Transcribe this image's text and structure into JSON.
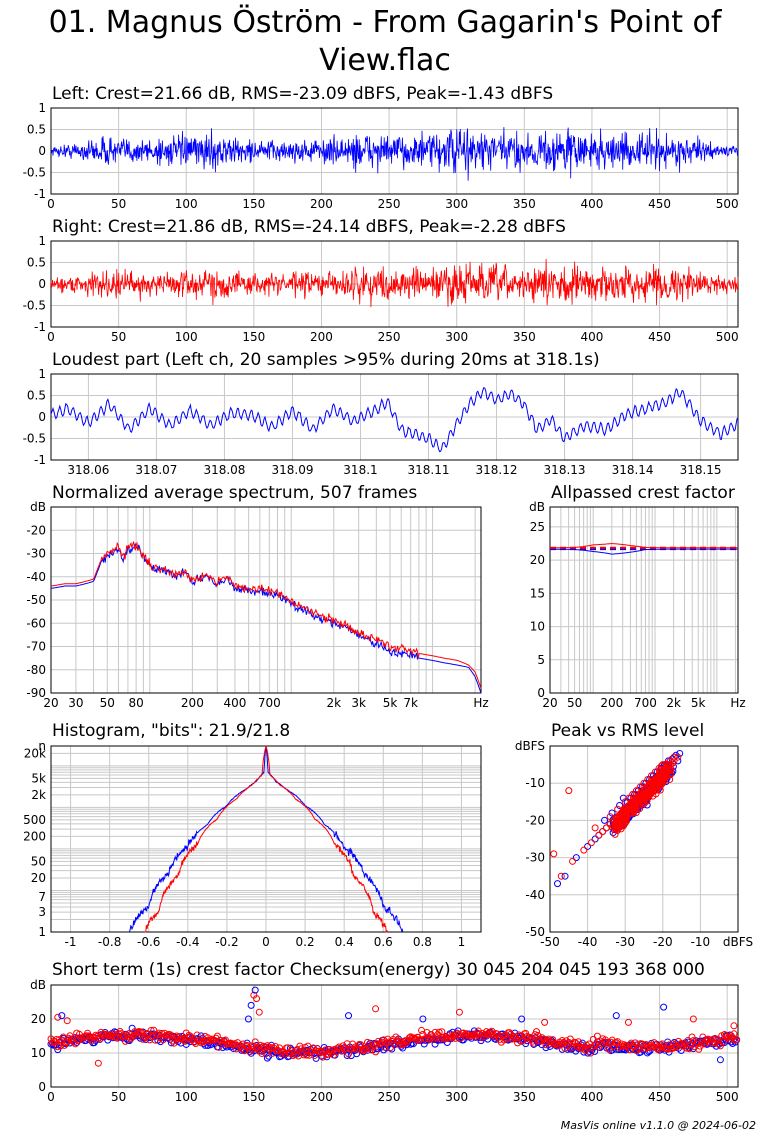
{
  "title": "01. Magnus Öström - From Gagarin's Point of\nView.flac",
  "credit": "MasVis online v1.1.0 @ 2024-06-02",
  "colors": {
    "left": "#0000ff",
    "right": "#ff0000",
    "avg": "#cc0033",
    "grid": "#c8c8c8"
  },
  "chart_data": [
    {
      "id": "left",
      "type": "line",
      "title": "Left: Crest=21.66 dB, RMS=-23.09 dBFS, Peak=-1.43 dBFS",
      "xlim": [
        0,
        508
      ],
      "ylim": [
        -1,
        1
      ],
      "xticks": [
        0,
        50,
        100,
        150,
        200,
        250,
        300,
        350,
        400,
        450,
        500
      ],
      "yticks": [
        1,
        0.5,
        0,
        -0.5,
        -1
      ],
      "envelope": {
        "x": [
          0,
          20,
          40,
          60,
          80,
          100,
          115,
          125,
          135,
          150,
          180,
          200,
          220,
          225,
          230,
          240,
          260,
          280,
          300,
          310,
          320,
          340,
          360,
          380,
          390,
          400,
          420,
          440,
          450,
          460,
          480,
          490,
          500,
          508
        ],
        "y": [
          0.12,
          0.25,
          0.4,
          0.35,
          0.42,
          0.4,
          0.45,
          0.55,
          0.35,
          0.3,
          0.3,
          0.35,
          0.4,
          0.55,
          0.55,
          0.45,
          0.42,
          0.5,
          0.65,
          0.75,
          0.6,
          0.5,
          0.55,
          0.6,
          0.65,
          0.55,
          0.45,
          0.5,
          0.6,
          0.45,
          0.3,
          0.2,
          0.15,
          0.1
        ]
      }
    },
    {
      "id": "right",
      "type": "line",
      "title": "Right: Crest=21.86 dB, RMS=-24.14 dBFS, Peak=-2.28 dBFS",
      "xlim": [
        0,
        508
      ],
      "ylim": [
        -1,
        1
      ],
      "xticks": [
        0,
        50,
        100,
        150,
        200,
        250,
        300,
        350,
        400,
        450,
        500
      ],
      "yticks": [
        1,
        0.5,
        0,
        -0.5,
        -1
      ],
      "envelope": {
        "x": [
          0,
          20,
          40,
          60,
          80,
          100,
          115,
          125,
          135,
          150,
          180,
          200,
          220,
          225,
          230,
          240,
          260,
          280,
          300,
          310,
          320,
          340,
          360,
          380,
          390,
          400,
          420,
          440,
          450,
          460,
          480,
          490,
          500,
          508
        ],
        "y": [
          0.15,
          0.3,
          0.35,
          0.38,
          0.35,
          0.38,
          0.4,
          0.45,
          0.35,
          0.3,
          0.32,
          0.35,
          0.38,
          0.5,
          0.5,
          0.42,
          0.4,
          0.45,
          0.6,
          0.7,
          0.55,
          0.45,
          0.5,
          0.55,
          0.55,
          0.5,
          0.4,
          0.45,
          0.55,
          0.42,
          0.35,
          0.28,
          0.25,
          0.22
        ]
      }
    },
    {
      "id": "loudest",
      "type": "line",
      "title": "Loudest part (Left ch, 20 samples >95% during 20ms at 318.1s)",
      "xlim": [
        318.0545,
        318.1555
      ],
      "ylim": [
        -1,
        1
      ],
      "xticks": [
        318.06,
        318.07,
        318.08,
        318.09,
        318.1,
        318.11,
        318.12,
        318.13,
        318.14,
        318.15
      ],
      "xticklabels": [
        "318.06",
        "318.07",
        "318.08",
        "318.09",
        "318.1",
        "318.11",
        "318.12",
        "318.13",
        "318.14",
        "318.15"
      ],
      "yticks": [
        1,
        0.5,
        0,
        -0.5,
        -1
      ],
      "series": [
        {
          "name": "Left",
          "x": [
            318.0545,
            318.057,
            318.06,
            318.063,
            318.066,
            318.069,
            318.072,
            318.075,
            318.078,
            318.081,
            318.084,
            318.087,
            318.09,
            318.093,
            318.096,
            318.099,
            318.102,
            318.104,
            318.106,
            318.108,
            318.11,
            318.112,
            318.114,
            318.116,
            318.118,
            318.12,
            318.122,
            318.124,
            318.126,
            318.128,
            318.13,
            318.133,
            318.136,
            318.139,
            318.142,
            318.145,
            318.147,
            318.15,
            318.153,
            318.1555
          ],
          "y": [
            0.05,
            0.2,
            -0.15,
            0.3,
            -0.3,
            0.2,
            -0.2,
            0.15,
            -0.2,
            0.1,
            0.05,
            -0.25,
            0.15,
            -0.3,
            0.2,
            -0.1,
            0.15,
            0.35,
            -0.3,
            -0.4,
            -0.5,
            -0.75,
            -0.2,
            0.3,
            0.6,
            0.4,
            0.55,
            0.3,
            -0.3,
            -0.05,
            -0.5,
            -0.2,
            -0.3,
            0.05,
            0.2,
            0.35,
            0.6,
            -0.1,
            -0.4,
            -0.15
          ]
        }
      ]
    },
    {
      "id": "spectrum",
      "type": "line",
      "title": "Normalized average spectrum, 507 frames",
      "ylabel": "dB",
      "xlabel": "Hz",
      "xscale": "log",
      "xlim": [
        20,
        22000
      ],
      "ylim": [
        -90,
        -10
      ],
      "yticks": [
        -20,
        -30,
        -40,
        -50,
        -60,
        -70,
        -80,
        -90
      ],
      "xticks": [
        20,
        30,
        50,
        80,
        200,
        400,
        700,
        2000,
        3000,
        5000,
        7000
      ],
      "xticklabels": [
        "20",
        "30",
        "50",
        "80",
        "200",
        "400",
        "700",
        "2k",
        "3k",
        "5k",
        "7k"
      ],
      "series": [
        {
          "name": "Left",
          "x": [
            20,
            25,
            30,
            35,
            40,
            45,
            50,
            55,
            60,
            65,
            70,
            80,
            90,
            100,
            120,
            150,
            180,
            200,
            250,
            300,
            350,
            400,
            500,
            600,
            700,
            800,
            1000,
            1200,
            1500,
            2000,
            2500,
            3000,
            4000,
            5000,
            6000,
            7000,
            8000,
            10000,
            12000,
            15000,
            18000,
            20000,
            22000
          ],
          "y": [
            -45,
            -44,
            -44,
            -43,
            -42,
            -34,
            -31,
            -30,
            -28,
            -33,
            -28,
            -27,
            -32,
            -35,
            -37,
            -40,
            -38,
            -42,
            -40,
            -43,
            -41,
            -45,
            -46,
            -46,
            -47,
            -48,
            -52,
            -54,
            -57,
            -60,
            -62,
            -65,
            -69,
            -72,
            -73,
            -74,
            -75,
            -76,
            -77,
            -78,
            -79,
            -83,
            -90
          ]
        },
        {
          "name": "Right",
          "x": [
            20,
            25,
            30,
            35,
            40,
            45,
            50,
            55,
            60,
            65,
            70,
            80,
            90,
            100,
            120,
            150,
            180,
            200,
            250,
            300,
            350,
            400,
            500,
            600,
            700,
            800,
            1000,
            1200,
            1500,
            2000,
            2500,
            3000,
            4000,
            5000,
            6000,
            7000,
            8000,
            10000,
            12000,
            15000,
            18000,
            20000,
            22000
          ],
          "y": [
            -44,
            -43,
            -43,
            -42,
            -41,
            -33,
            -30,
            -29,
            -27,
            -32,
            -27,
            -26,
            -31,
            -35,
            -37,
            -39,
            -38,
            -41,
            -39,
            -42,
            -40,
            -44,
            -45,
            -45,
            -46,
            -47,
            -51,
            -53,
            -56,
            -59,
            -61,
            -64,
            -67,
            -70,
            -71,
            -72,
            -73,
            -74,
            -75,
            -76,
            -78,
            -81,
            -88
          ]
        }
      ]
    },
    {
      "id": "allpass",
      "type": "line",
      "title": "Allpassed crest factor",
      "ylabel": "dB",
      "xlabel": "Hz",
      "xscale": "log",
      "xlim": [
        20,
        22000
      ],
      "ylim": [
        0,
        28
      ],
      "yticks": [
        25,
        20,
        15,
        10,
        5,
        0
      ],
      "xticks": [
        20,
        50,
        200,
        700,
        2000,
        5000
      ],
      "xticklabels": [
        "20",
        "50",
        "200",
        "700",
        "2k",
        "5k"
      ],
      "series": [
        {
          "name": "Left",
          "x": [
            20,
            50,
            100,
            200,
            400,
            700,
            1500,
            5000,
            22000
          ],
          "y": [
            21.66,
            21.6,
            21.3,
            20.9,
            21.2,
            21.6,
            21.66,
            21.66,
            21.66
          ]
        },
        {
          "name": "Right",
          "x": [
            20,
            50,
            100,
            200,
            400,
            700,
            1500,
            5000,
            22000
          ],
          "y": [
            21.86,
            21.9,
            22.3,
            22.5,
            22.2,
            21.9,
            21.86,
            21.86,
            21.86
          ]
        },
        {
          "name": "Left",
          "x": [
            20,
            22000
          ],
          "y": [
            21.66,
            21.66
          ],
          "dashed": true
        },
        {
          "name": "Right",
          "x": [
            20,
            22000
          ],
          "y": [
            21.86,
            21.86
          ],
          "dashed": true
        }
      ]
    },
    {
      "id": "histogram",
      "type": "line",
      "title": "Histogram, \"bits\": 21.9/21.8",
      "ylabel": "n",
      "yscale": "log",
      "xlim": [
        -1.1,
        1.1
      ],
      "ylim": [
        1,
        30000
      ],
      "xticks": [
        -1,
        -0.8,
        -0.6,
        -0.4,
        -0.2,
        0,
        0.2,
        0.4,
        0.6,
        0.8,
        1
      ],
      "yticks": [
        20000,
        5000,
        2000,
        500,
        200,
        50,
        20,
        7,
        3,
        1
      ],
      "yticklabels": [
        "20k",
        "5k",
        "2k",
        "500",
        "200",
        "50",
        "20",
        "7",
        "3",
        "1"
      ],
      "series": [
        {
          "name": "Left",
          "x": [
            -0.7,
            -0.6,
            -0.5,
            -0.4,
            -0.3,
            -0.2,
            -0.1,
            -0.05,
            -0.01,
            0,
            0.01,
            0.05,
            0.1,
            0.2,
            0.3,
            0.4,
            0.5,
            0.6,
            0.7
          ],
          "y": [
            1,
            4,
            25,
            110,
            380,
            1100,
            2800,
            4200,
            7000,
            30000,
            7000,
            4200,
            2800,
            1100,
            380,
            110,
            25,
            4,
            1
          ]
        },
        {
          "name": "Right",
          "x": [
            -0.62,
            -0.55,
            -0.45,
            -0.35,
            -0.25,
            -0.15,
            -0.07,
            -0.02,
            0,
            0.02,
            0.07,
            0.15,
            0.25,
            0.35,
            0.45,
            0.55,
            0.62
          ],
          "y": [
            1,
            3,
            22,
            130,
            520,
            1600,
            3500,
            6000,
            30000,
            6000,
            3500,
            1600,
            520,
            130,
            22,
            3,
            1
          ]
        }
      ]
    },
    {
      "id": "peakrms",
      "type": "scatter",
      "title": "Peak vs RMS level",
      "ylabel": "dBFS",
      "xlabel": "dBFS",
      "xlim": [
        -50,
        0
      ],
      "ylim": [
        -50,
        0
      ],
      "xticks": [
        -50,
        -40,
        -30,
        -20,
        -10
      ],
      "yticks": [
        -10,
        -20,
        -30,
        -40,
        -50
      ],
      "series": [
        {
          "name": "Left",
          "x": [
            -15.5,
            -16,
            -17,
            -18,
            -19,
            -20,
            -21,
            -22,
            -23,
            -24,
            -25,
            -26,
            -27,
            -28,
            -29,
            -30,
            -31,
            -32,
            -33,
            -34,
            -35,
            -36,
            -37,
            -38,
            -40,
            -43,
            -46,
            -48,
            -20.5,
            -21.5,
            -22.5,
            -23.5,
            -24.5,
            -25.5,
            -26.5,
            -27.5,
            -28.5,
            -29.5,
            -18.5,
            -19.5,
            -17.5,
            -16.5,
            -31.5,
            -33.5,
            -35.5,
            -30.5,
            -22,
            -24,
            -26,
            -28
          ],
          "y": [
            -2,
            -4,
            -3,
            -5,
            -6,
            -7,
            -8,
            -9,
            -10,
            -11,
            -12,
            -13,
            -14,
            -15,
            -16,
            -17,
            -18,
            -19,
            -20,
            -21,
            -22,
            -23,
            -24,
            -25,
            -27,
            -30,
            -35,
            -37,
            -6,
            -7,
            -8,
            -9,
            -10,
            -11,
            -12,
            -13,
            -14,
            -15,
            -4,
            -5,
            -3.5,
            -2.5,
            -16,
            -18,
            -20,
            -14,
            -11,
            -13,
            -15,
            -17
          ]
        },
        {
          "name": "Right",
          "x": [
            -16,
            -17,
            -18,
            -19,
            -20,
            -21,
            -22,
            -23,
            -24,
            -25,
            -26,
            -27,
            -28,
            -29,
            -30,
            -31,
            -32,
            -33,
            -34,
            -35,
            -36,
            -37,
            -39,
            -41,
            -44,
            -47,
            -49,
            -20,
            -21,
            -22,
            -23,
            -24,
            -25,
            -26,
            -27,
            -28,
            -29,
            -30,
            -18,
            -19,
            -17,
            -32,
            -34,
            -38,
            -45,
            -23,
            -25,
            -27
          ],
          "y": [
            -3,
            -4,
            -5,
            -6,
            -7,
            -8,
            -9,
            -10,
            -11,
            -12,
            -13,
            -14,
            -15,
            -16,
            -17,
            -18,
            -19,
            -20,
            -21,
            -22,
            -23,
            -24,
            -26,
            -28,
            -31,
            -35,
            -29,
            -5,
            -6,
            -7,
            -8,
            -9,
            -10,
            -11,
            -12,
            -13,
            -14,
            -15,
            -4,
            -5,
            -3,
            -17,
            -19,
            -22,
            -12,
            -9,
            -11,
            -13
          ]
        }
      ]
    },
    {
      "id": "shortcrest",
      "type": "scatter",
      "title": "Short term (1s) crest factor    Checksum(energy) 30 045 204 045 193 368 000",
      "ylabel": "dB",
      "xlim": [
        0,
        508
      ],
      "ylim": [
        0,
        30
      ],
      "xticks": [
        0,
        50,
        100,
        150,
        200,
        250,
        300,
        350,
        400,
        450,
        500
      ],
      "yticks": [
        20,
        10,
        0
      ],
      "highlights": [
        {
          "x": 5,
          "y": 20.5
        },
        {
          "x": 8,
          "y": 21
        },
        {
          "x": 12,
          "y": 19.5
        },
        {
          "x": 148,
          "y": 24
        },
        {
          "x": 150,
          "y": 27
        },
        {
          "x": 151,
          "y": 28.5
        },
        {
          "x": 152,
          "y": 26
        },
        {
          "x": 146,
          "y": 20
        },
        {
          "x": 154,
          "y": 22
        },
        {
          "x": 160,
          "y": 8.5
        },
        {
          "x": 35,
          "y": 7
        },
        {
          "x": 220,
          "y": 21
        },
        {
          "x": 240,
          "y": 23
        },
        {
          "x": 275,
          "y": 20
        },
        {
          "x": 302,
          "y": 22
        },
        {
          "x": 348,
          "y": 20
        },
        {
          "x": 365,
          "y": 19
        },
        {
          "x": 418,
          "y": 21
        },
        {
          "x": 427,
          "y": 19
        },
        {
          "x": 453,
          "y": 23.5
        },
        {
          "x": 475,
          "y": 20
        },
        {
          "x": 495,
          "y": 8
        },
        {
          "x": 505,
          "y": 18
        }
      ]
    }
  ]
}
